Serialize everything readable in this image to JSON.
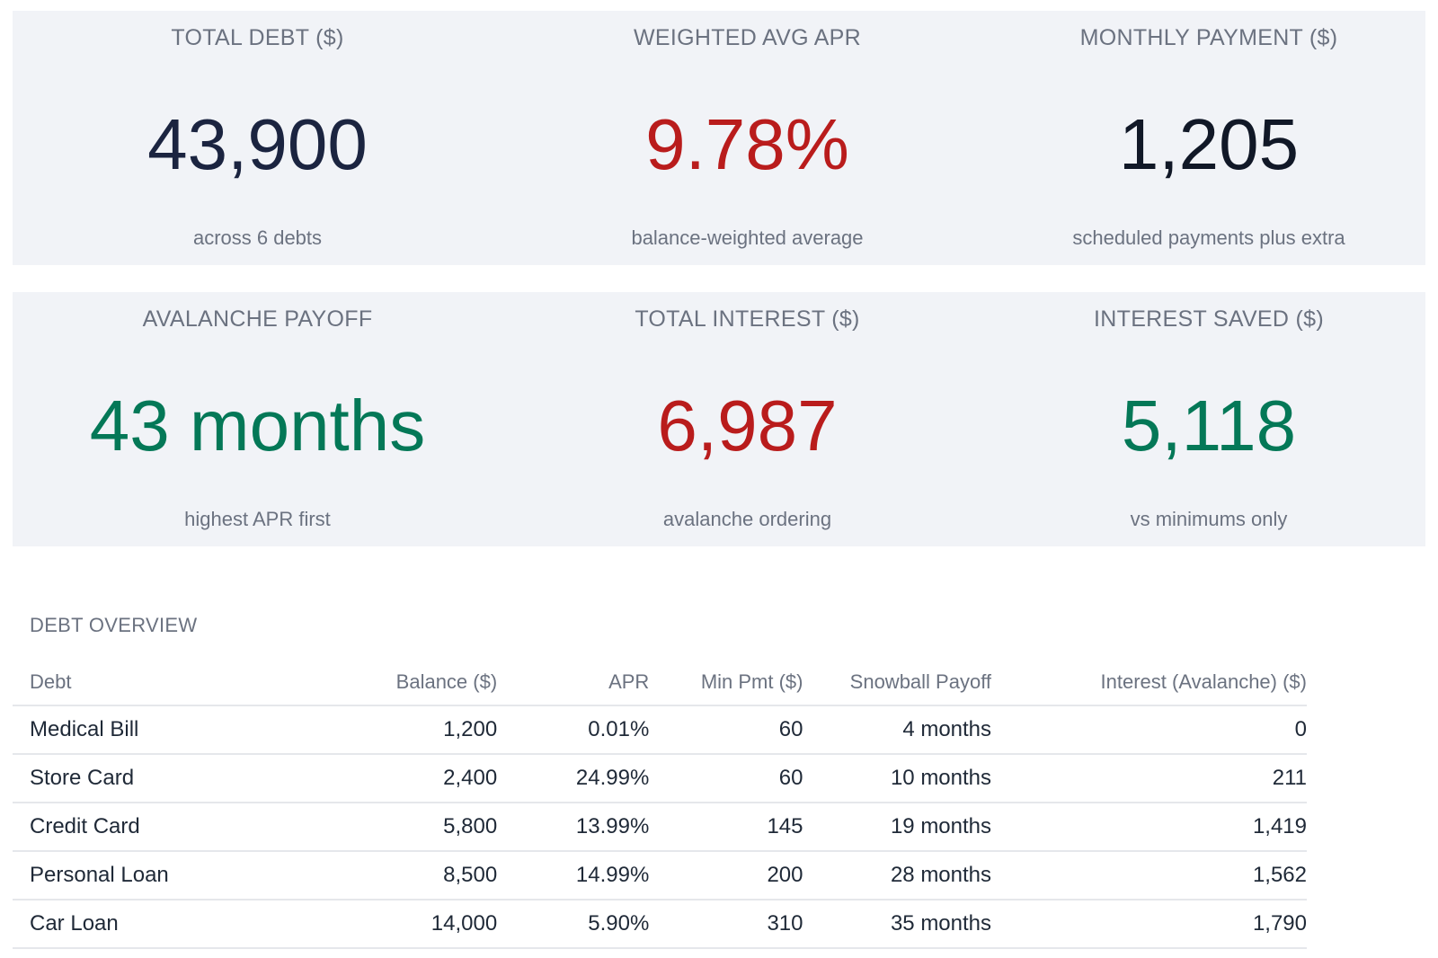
{
  "kpis": [
    {
      "title": "TOTAL DEBT ($)",
      "value": "43,900",
      "sub": "across 6 debts",
      "color": "#1b2440"
    },
    {
      "title": "WEIGHTED AVG APR",
      "value": "9.78%",
      "sub": "balance-weighted average",
      "color": "#b91c1c"
    },
    {
      "title": "MONTHLY PAYMENT ($)",
      "value": "1,205",
      "sub": "scheduled payments plus extra",
      "color": "#111827"
    },
    {
      "title": "AVALANCHE PAYOFF",
      "value": "43 months",
      "sub": "highest APR first",
      "color": "#047857"
    },
    {
      "title": "TOTAL INTEREST ($)",
      "value": "6,987",
      "sub": "avalanche ordering",
      "color": "#b91c1c"
    },
    {
      "title": "INTEREST SAVED ($)",
      "value": "5,118",
      "sub": "vs minimums only",
      "color": "#047857"
    }
  ],
  "table": {
    "section_title": "DEBT OVERVIEW",
    "headers": {
      "debt": "Debt",
      "balance": "Balance ($)",
      "apr": "APR",
      "min_pmt": "Min Pmt ($)",
      "snowball": "Snowball Payoff",
      "interest": "Interest (Avalanche) ($)"
    },
    "rows": [
      {
        "debt": "Medical Bill",
        "balance": "1,200",
        "apr": "0.01%",
        "min_pmt": "60",
        "snowball": "4 months",
        "interest": "0"
      },
      {
        "debt": "Store Card",
        "balance": "2,400",
        "apr": "24.99%",
        "min_pmt": "60",
        "snowball": "10 months",
        "interest": "211"
      },
      {
        "debt": "Credit Card",
        "balance": "5,800",
        "apr": "13.99%",
        "min_pmt": "145",
        "snowball": "19 months",
        "interest": "1,419"
      },
      {
        "debt": "Personal Loan",
        "balance": "8,500",
        "apr": "14.99%",
        "min_pmt": "200",
        "snowball": "28 months",
        "interest": "1,562"
      },
      {
        "debt": "Car Loan",
        "balance": "14,000",
        "apr": "5.90%",
        "min_pmt": "310",
        "snowball": "35 months",
        "interest": "1,790"
      }
    ]
  }
}
